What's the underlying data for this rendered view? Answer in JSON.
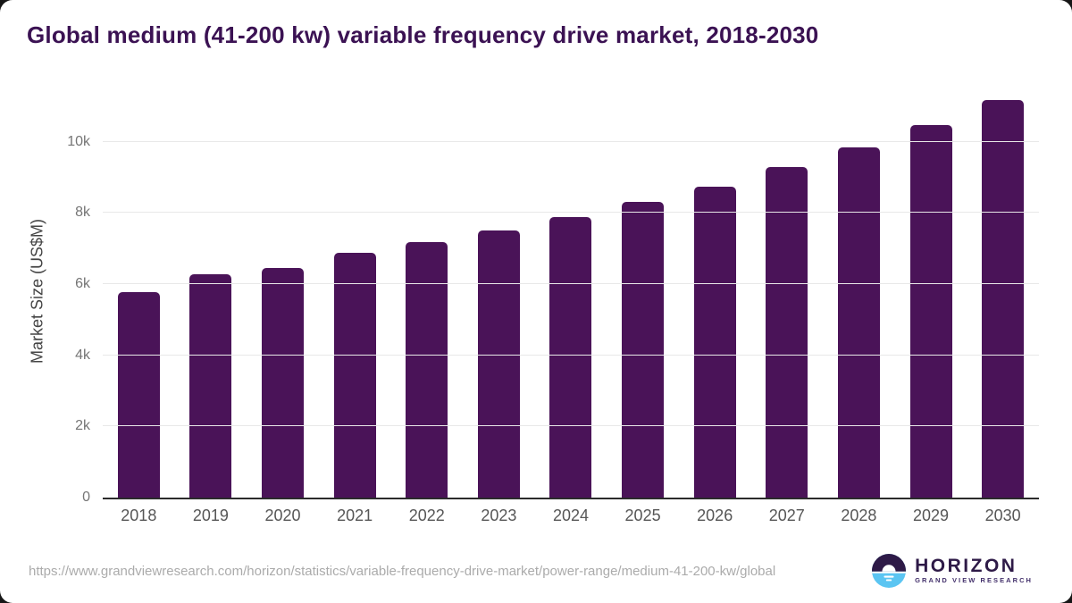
{
  "page": {
    "title": "Global medium (41-200 kw) variable frequency drive market, 2018-2030",
    "source_url": "https://www.grandviewresearch.com/horizon/statistics/variable-frequency-drive-market/power-range/medium-41-200-kw/global",
    "logo": {
      "name": "HORIZON",
      "subtitle": "GRAND VIEW RESEARCH"
    }
  },
  "colors": {
    "bar": "#4a1358",
    "title": "#3b1253",
    "axis_title": "#444444",
    "y_tick_label": "#757575",
    "x_label": "#565656",
    "gridline": "#e8e8e8",
    "axis_line": "#2b2b2b",
    "url_text": "#ababab",
    "logo_dark": "#2e1a47",
    "logo_blue": "#5bc5f2"
  },
  "chart_data": {
    "type": "bar",
    "title": "Global medium (41-200 kw) variable frequency drive market, 2018-2030",
    "categories": [
      "2018",
      "2019",
      "2020",
      "2021",
      "2022",
      "2023",
      "2024",
      "2025",
      "2026",
      "2027",
      "2028",
      "2029",
      "2030"
    ],
    "values": [
      5780,
      6270,
      6450,
      6890,
      7180,
      7500,
      7880,
      8300,
      8750,
      9280,
      9840,
      10480,
      11170
    ],
    "series_name": "Market Size",
    "xlabel": "",
    "ylabel": "Market Size (US$M)",
    "ylim": [
      0,
      11600
    ],
    "yticks": [
      {
        "value": 0,
        "label": "0"
      },
      {
        "value": 2000,
        "label": "2k"
      },
      {
        "value": 4000,
        "label": "4k"
      },
      {
        "value": 6000,
        "label": "6k"
      },
      {
        "value": 8000,
        "label": "8k"
      },
      {
        "value": 10000,
        "label": "10k"
      }
    ],
    "grid": "horizontal",
    "legend_position": "none",
    "bar_color": "#4a1358"
  }
}
